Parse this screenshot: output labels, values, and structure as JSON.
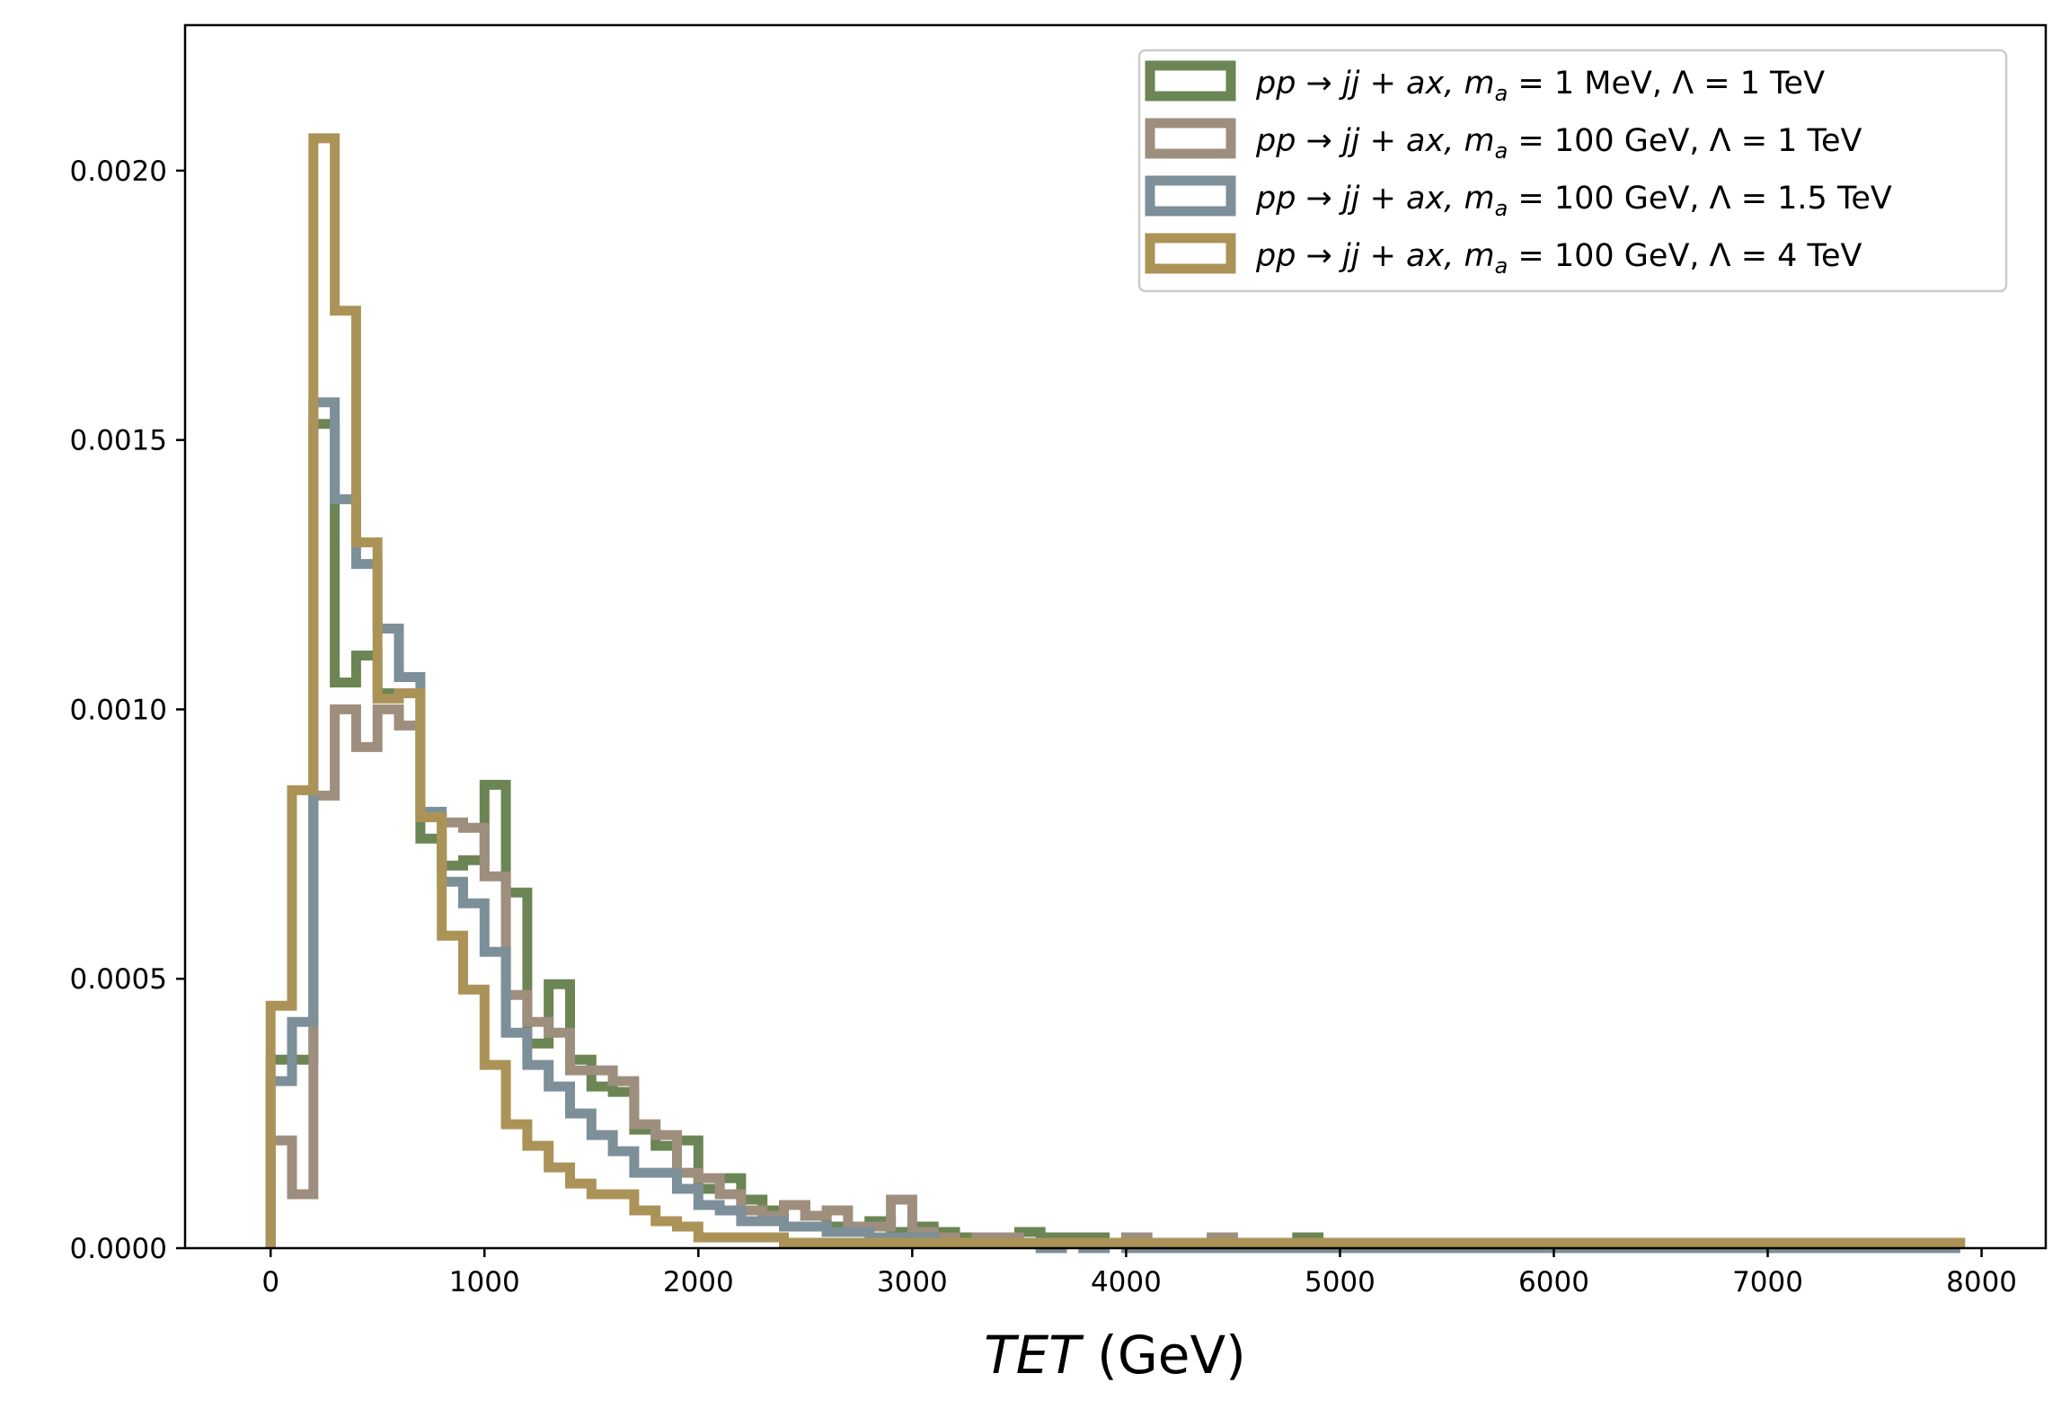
{
  "chart_data": {
    "type": "histogram",
    "xlabel_var": "TET",
    "xlabel_unit": " (GeV)",
    "ylabel": "",
    "xlim": [
      -400,
      8300
    ],
    "ylim": [
      0,
      0.00227
    ],
    "x_ticks": [
      0,
      1000,
      2000,
      3000,
      4000,
      5000,
      6000,
      7000,
      8000
    ],
    "x_tick_labels": [
      "0",
      "1000",
      "2000",
      "3000",
      "4000",
      "5000",
      "6000",
      "7000",
      "8000"
    ],
    "y_ticks": [
      0,
      0.0005,
      0.001,
      0.0015,
      0.002
    ],
    "y_tick_labels": [
      "0.0000",
      "0.0005",
      "0.0010",
      "0.0015",
      "0.0020"
    ],
    "grid": false,
    "legend_position": "top-right",
    "bin_width": 100,
    "series": [
      {
        "name": "pp → jj + ax, m_a = 1 MeV, Λ = 1 TeV",
        "legend_parts": {
          "process": "pp → jj + ax, ",
          "mass": " = 1 MeV, ",
          "scale": "Λ = 1 TeV"
        },
        "color": "#6b8554",
        "bin_start": 0,
        "values": [
          0.00035,
          0.00035,
          0.00153,
          0.00105,
          0.0011,
          0.00103,
          0.00103,
          0.00076,
          0.00071,
          0.00072,
          0.00086,
          0.00066,
          0.00038,
          0.00049,
          0.00035,
          0.0003,
          0.00029,
          0.00022,
          0.00019,
          0.0002,
          0.00011,
          0.00013,
          9e-05,
          7e-05,
          8e-05,
          6e-05,
          4e-05,
          4e-05,
          5e-05,
          3e-05,
          4e-05,
          3e-05,
          2e-05,
          2e-05,
          2e-05,
          3e-05,
          2e-05,
          2e-05,
          2e-05,
          1e-05,
          1e-05,
          0.0,
          1e-05,
          0.0,
          1e-05,
          0.0,
          1e-05,
          0.0,
          2e-05,
          1e-05,
          0.0,
          0.0,
          0.0,
          0.0,
          0.0,
          0.0,
          0.0,
          0.0,
          0.0,
          0.0,
          0.0,
          0.0,
          0.0,
          0.0,
          0.0,
          0.0,
          0.0,
          0.0,
          0.0,
          0.0,
          0.0,
          0.0,
          0.0,
          0.0,
          0.0,
          0.0,
          0.0,
          0.0,
          0.0
        ]
      },
      {
        "name": "pp → jj + ax, m_a = 100 GeV, Λ = 1 TeV",
        "legend_parts": {
          "process": "pp → jj + ax, ",
          "mass": " = 100 GeV, ",
          "scale": "Λ = 1 TeV"
        },
        "color": "#9e8e7e",
        "bin_start": 0,
        "values": [
          0.0002,
          0.0001,
          0.00084,
          0.001,
          0.00093,
          0.001,
          0.00097,
          0.0008,
          0.00079,
          0.00078,
          0.00069,
          0.00047,
          0.00042,
          0.0004,
          0.00033,
          0.00033,
          0.00031,
          0.00023,
          0.00021,
          0.00014,
          0.00013,
          0.0001,
          7e-05,
          6e-05,
          8e-05,
          6e-05,
          7e-05,
          4e-05,
          4e-05,
          9e-05,
          3e-05,
          2e-05,
          1e-05,
          2e-05,
          2e-05,
          1e-05,
          1e-05,
          1e-05,
          0.0,
          1e-05,
          2e-05,
          0.0,
          1e-05,
          0.0,
          2e-05,
          0.0,
          0.0,
          0.0,
          1e-05,
          0.0,
          0.0,
          0.0,
          0.0,
          0.0,
          0.0,
          0.0,
          0.0,
          0.0,
          0.0,
          0.0,
          0.0,
          0.0,
          0.0,
          0.0,
          0.0,
          0.0,
          0.0,
          0.0,
          0.0,
          0.0,
          0.0,
          0.0,
          0.0,
          0.0,
          0.0,
          0.0,
          0.0,
          0.0,
          0.0
        ]
      },
      {
        "name": "pp → jj + ax, m_a = 100 GeV, Λ = 1.5 TeV",
        "legend_parts": {
          "process": "pp → jj + ax, ",
          "mass": " = 100 GeV, ",
          "scale": "Λ = 1.5 TeV"
        },
        "color": "#7d8f99",
        "bin_start": 0,
        "values": [
          0.00031,
          0.00042,
          0.00157,
          0.00139,
          0.00127,
          0.00115,
          0.00106,
          0.00081,
          0.00068,
          0.00064,
          0.00055,
          0.0004,
          0.00034,
          0.0003,
          0.00025,
          0.00021,
          0.00018,
          0.00014,
          0.00014,
          0.00011,
          8e-05,
          7e-05,
          5e-05,
          5e-05,
          4e-05,
          4e-05,
          3e-05,
          3e-05,
          2e-05,
          2e-05,
          2e-05,
          1e-05,
          1e-05,
          1e-05,
          1e-05,
          1e-05,
          0.0,
          1e-05,
          0.0,
          1e-05,
          0.0,
          0.0,
          0.0,
          0.0,
          0.0,
          0.0,
          0.0,
          0.0,
          0.0,
          0.0,
          0.0,
          0.0,
          0.0,
          0.0,
          0.0,
          0.0,
          0.0,
          0.0,
          0.0,
          0.0,
          0.0,
          0.0,
          0.0,
          0.0,
          0.0,
          0.0,
          0.0,
          0.0,
          0.0,
          0.0,
          0.0,
          0.0,
          0.0,
          0.0,
          0.0,
          0.0,
          0.0,
          0.0,
          0.0
        ]
      },
      {
        "name": "pp → jj + ax, m_a = 100 GeV, Λ = 4 TeV",
        "legend_parts": {
          "process": "pp → jj + ax, ",
          "mass": " = 100 GeV, ",
          "scale": "Λ = 4 TeV"
        },
        "color": "#ab9358",
        "bin_start": 0,
        "values": [
          0.00045,
          0.00085,
          0.00206,
          0.00174,
          0.00131,
          0.00102,
          0.00103,
          0.0008,
          0.00058,
          0.00048,
          0.00034,
          0.00023,
          0.00019,
          0.00015,
          0.00012,
          0.0001,
          0.0001,
          7e-05,
          5e-05,
          4e-05,
          2e-05,
          2e-05,
          2e-05,
          2e-05,
          1e-05,
          1e-05,
          1e-05,
          1e-05,
          1e-05,
          1e-05,
          1e-05,
          1e-05,
          1e-05,
          1e-05,
          1e-05,
          1e-05,
          1e-05,
          1e-05,
          1e-05,
          1e-05,
          1e-05,
          1e-05,
          1e-05,
          1e-05,
          1e-05,
          1e-05,
          1e-05,
          1e-05,
          1e-05,
          1e-05,
          1e-05,
          1e-05,
          1e-05,
          1e-05,
          1e-05,
          1e-05,
          1e-05,
          1e-05,
          1e-05,
          1e-05,
          1e-05,
          1e-05,
          1e-05,
          1e-05,
          1e-05,
          1e-05,
          1e-05,
          1e-05,
          1e-05,
          1e-05,
          1e-05,
          1e-05,
          1e-05,
          1e-05,
          1e-05,
          1e-05,
          1e-05,
          1e-05,
          1e-05
        ]
      }
    ]
  }
}
